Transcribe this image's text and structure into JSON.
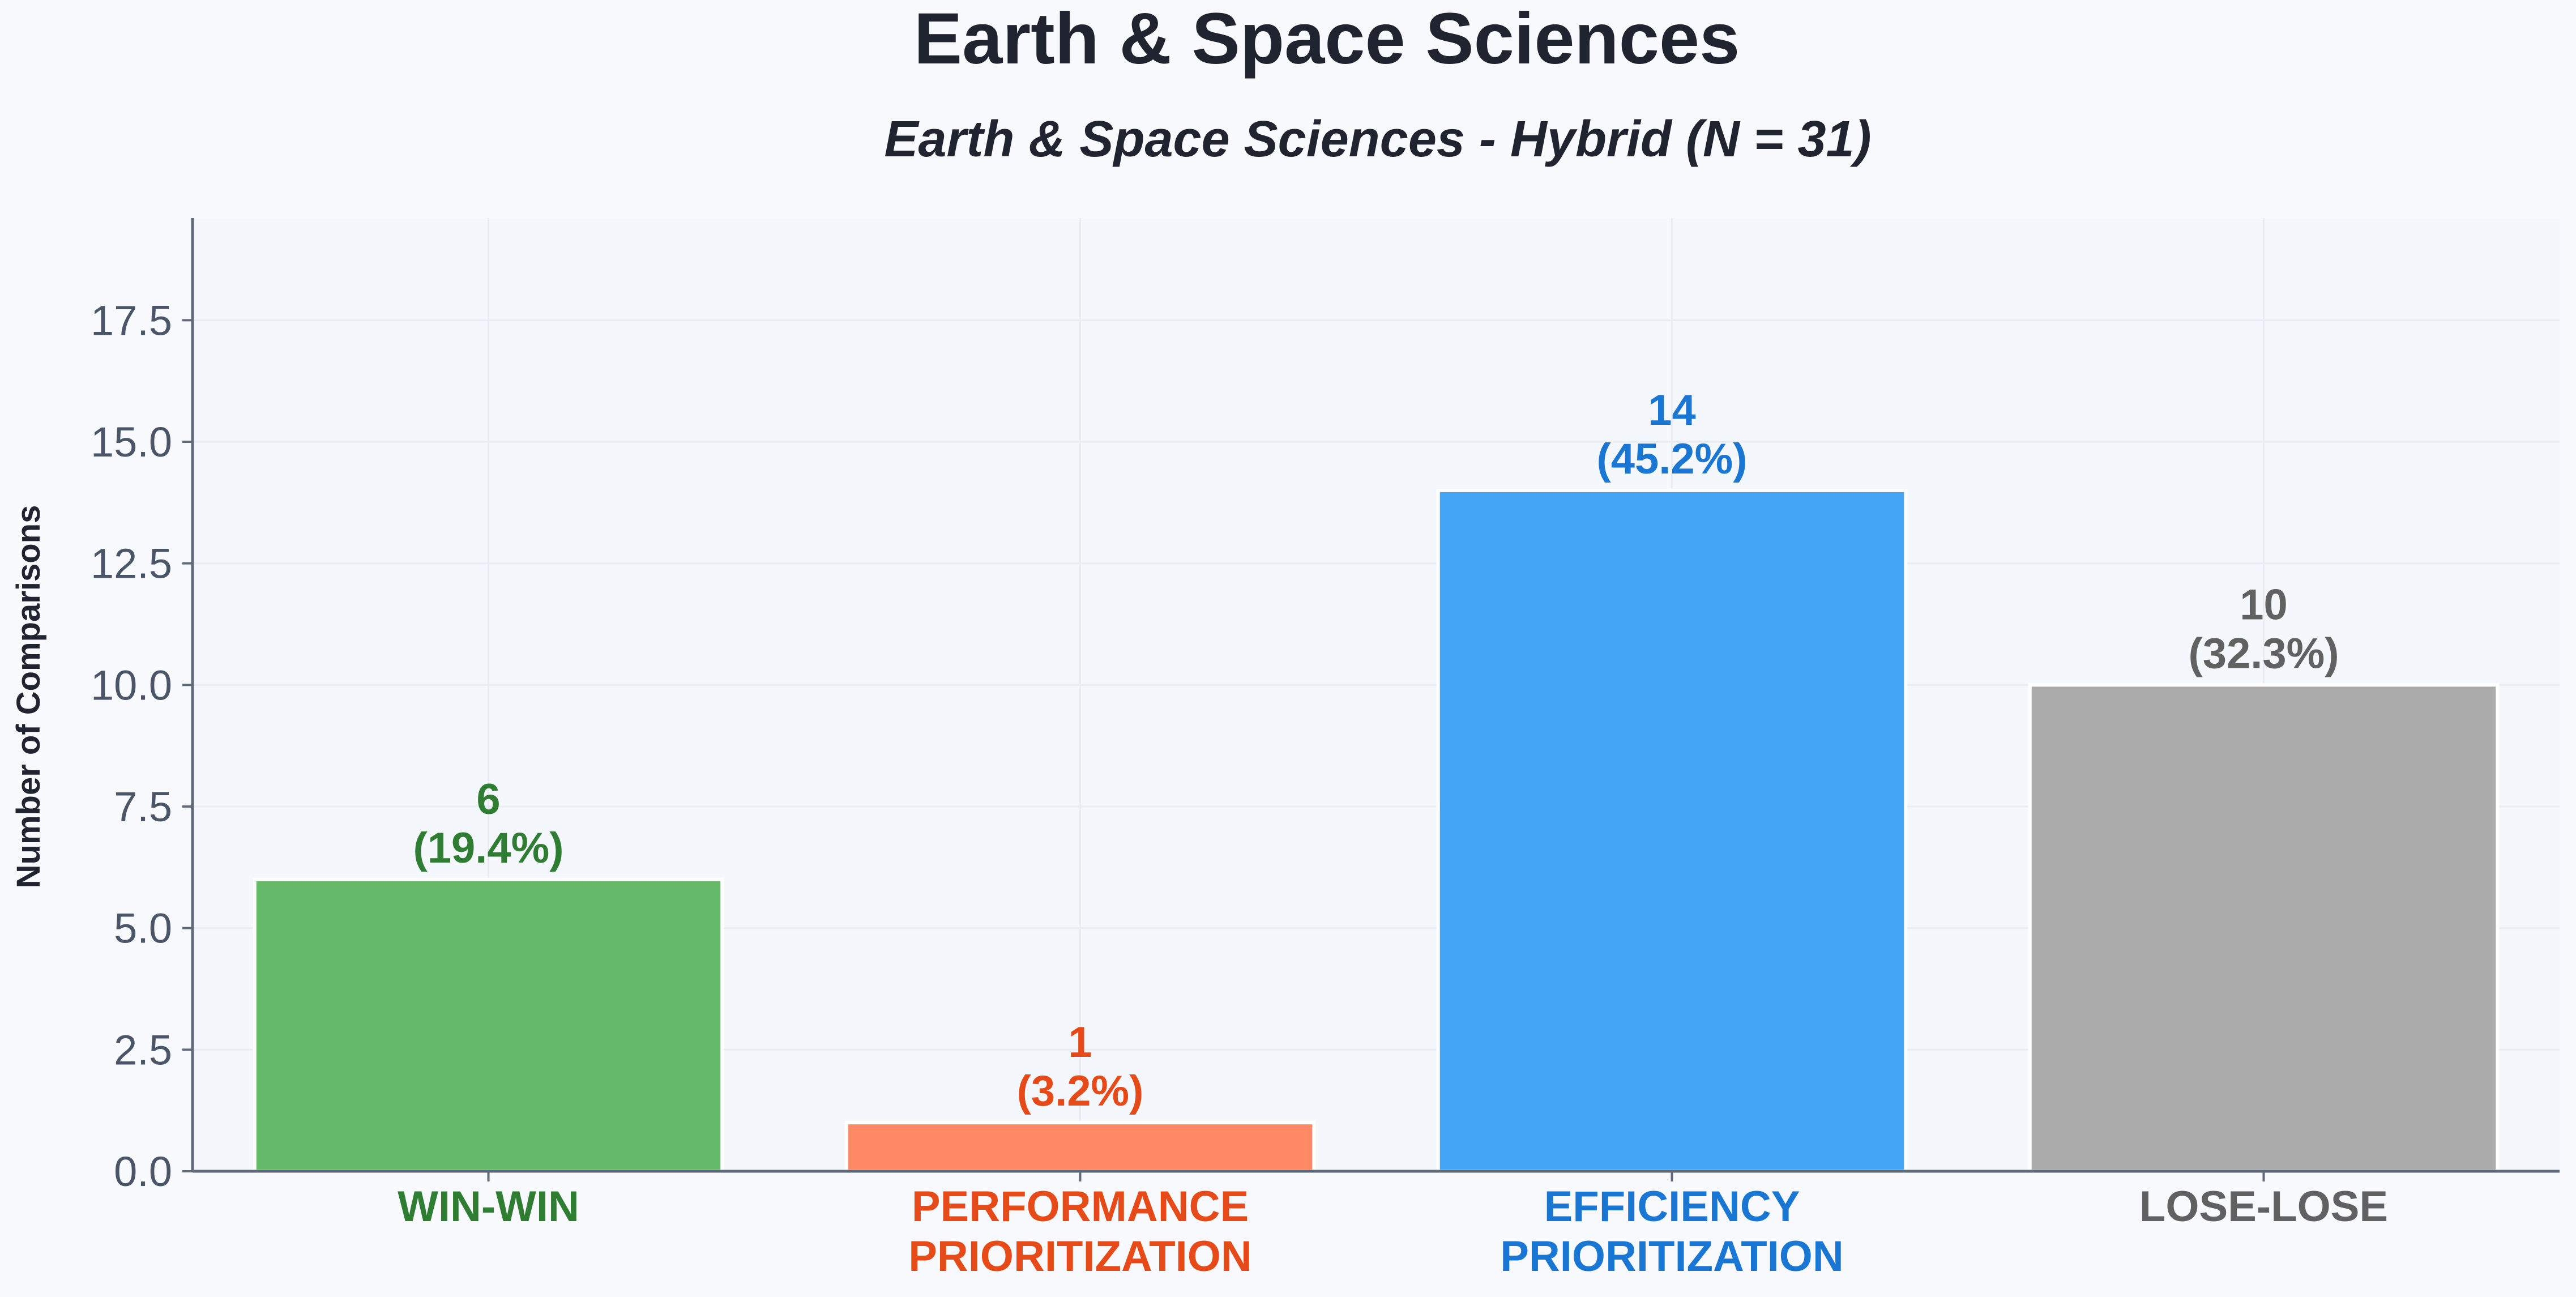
{
  "chart_data": {
    "type": "bar",
    "title": "Earth & Space Sciences",
    "subtitle": "Earth & Space Sciences - Hybrid (N = 31)",
    "ylabel": "Number of Comparisons",
    "xlabel": "",
    "ylim": [
      0,
      19.6
    ],
    "yticks": [
      0,
      2.5,
      5,
      7.5,
      10,
      12.5,
      15,
      17.5
    ],
    "ytick_labels": [
      "0.0",
      "2.5",
      "5.0",
      "7.5",
      "10.0",
      "12.5",
      "15.0",
      "17.5"
    ],
    "grid": true,
    "legend": "none",
    "categories": [
      [
        "WIN-WIN"
      ],
      [
        "PERFORMANCE",
        "PRIORITIZATION"
      ],
      [
        "EFFICIENCY",
        "PRIORITIZATION"
      ],
      [
        "LOSE-LOSE"
      ]
    ],
    "values": [
      6,
      1,
      14,
      10
    ],
    "value_labels": [
      "6",
      "1",
      "14",
      "10"
    ],
    "percent_labels": [
      "(19.4%)",
      "(3.2%)",
      "(45.2%)",
      "(32.3%)"
    ],
    "bar_colors": [
      "#66bb6a",
      "#ff8a65",
      "#42a5f5",
      "#ababab"
    ],
    "label_colors": [
      "#2e7d32",
      "#e64a19",
      "#1976d2",
      "#616161"
    ]
  },
  "colors": {
    "background": "#f7f9fc",
    "plot_background": "#f4f7fb",
    "axis": "#5f6b7a",
    "tick_text": "#4a5568",
    "title_text": "#1f2430",
    "grid": "#e8edf3"
  }
}
